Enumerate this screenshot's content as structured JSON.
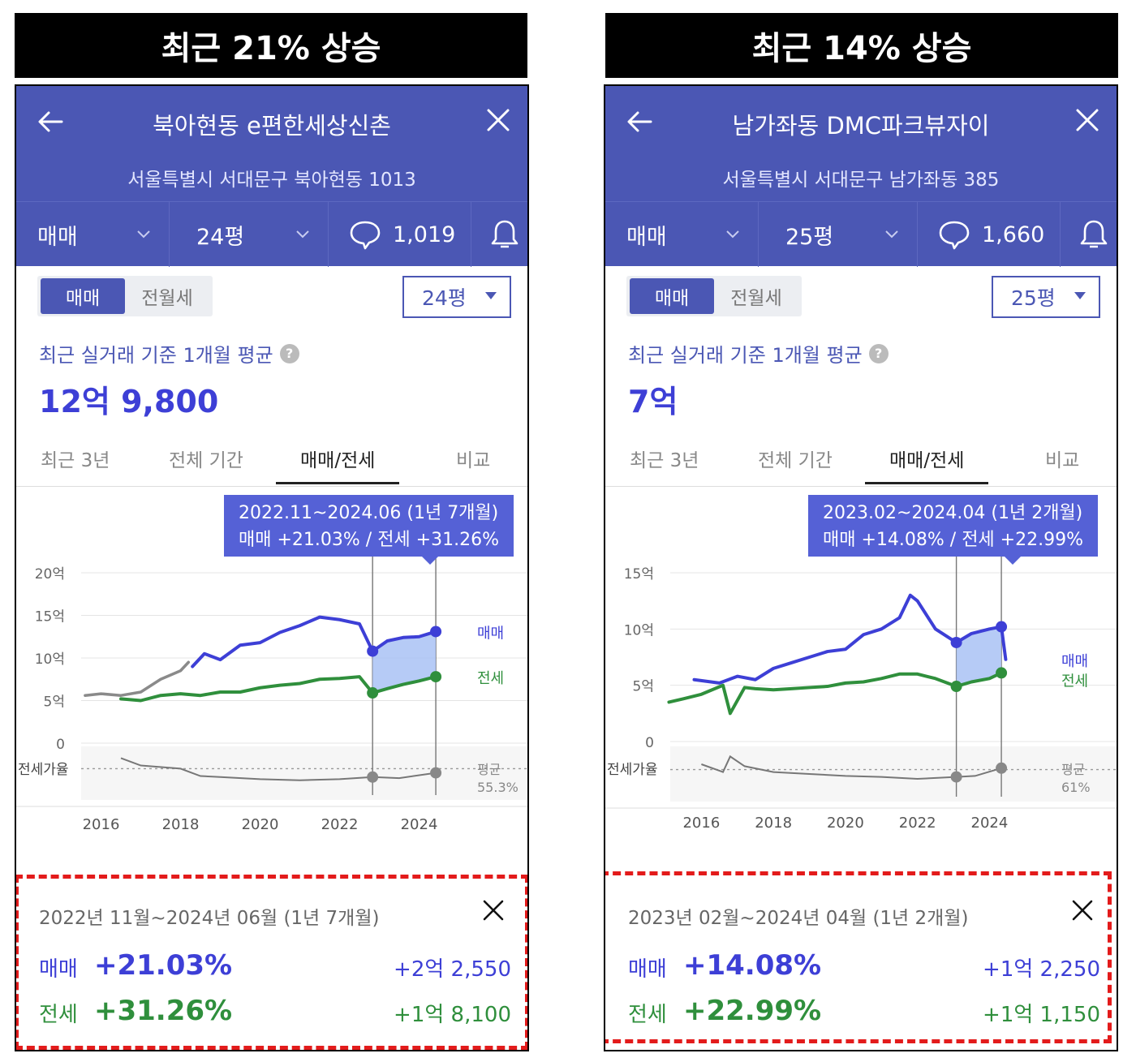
{
  "banners": {
    "left": "최근 21% 상승",
    "right": "최근 14% 상승"
  },
  "colors": {
    "header": "#4b57b4",
    "sale": "#3d3fd6",
    "jeonse": "#2f8f3c",
    "ratio": "#777777",
    "highlight": "#a9c2f5",
    "dash_border": "#e31b1b"
  },
  "left": {
    "title": "북아현동 e편한세상신촌",
    "address": "서울특별시 서대문구 북아현동 1013",
    "deal_type": "매매",
    "size": "24평",
    "comment_count": "1,019",
    "toggle": {
      "on": "매매",
      "off": "전월세"
    },
    "size_select": "24평",
    "avg_label": "최근 실거래 기준 1개월 평균",
    "avg_price": "12억 9,800",
    "tabs": [
      "최근 3년",
      "전체 기간",
      "매매/전세",
      "비교"
    ],
    "tooltip": {
      "line1": "2022.11~2024.06 (1년 7개월)",
      "line2": "매매 +21.03%  /  전세 +31.26%"
    },
    "summary": {
      "period": "2022년 11월~2024년 06월 (1년 7개월)",
      "sale_label": "매매",
      "sale_pct": "+21.03%",
      "sale_amt": "+2억 2,550",
      "jeonse_label": "전세",
      "jeonse_pct": "+31.26%",
      "jeonse_amt": "+1억 8,100"
    },
    "chart_data": {
      "type": "line",
      "y_ticks": [
        "20억",
        "15억",
        "10억",
        "5억",
        "0"
      ],
      "ylim": [
        0,
        20
      ],
      "x_ticks": [
        "2016",
        "2018",
        "2020",
        "2022",
        "2024"
      ],
      "xlim": [
        2015.5,
        2025.5
      ],
      "series_labels": {
        "sale": "매매",
        "jeonse": "전세"
      },
      "ratio_label": "전세가율",
      "ratio_avg_label": "평균",
      "ratio_avg_value": "55.3%",
      "highlight_range": [
        2022.83,
        2024.42
      ],
      "sale_early": [
        [
          2015.6,
          5.6
        ],
        [
          2016,
          5.8
        ],
        [
          2016.5,
          5.6
        ],
        [
          2017,
          6.0
        ],
        [
          2017.5,
          7.5
        ],
        [
          2018,
          8.5
        ],
        [
          2018.2,
          9.5
        ]
      ],
      "sale": [
        [
          2018.3,
          9.0
        ],
        [
          2018.6,
          10.5
        ],
        [
          2019,
          9.8
        ],
        [
          2019.5,
          11.5
        ],
        [
          2020,
          11.8
        ],
        [
          2020.5,
          13.0
        ],
        [
          2021,
          13.8
        ],
        [
          2021.5,
          14.8
        ],
        [
          2022,
          14.5
        ],
        [
          2022.5,
          14.0
        ],
        [
          2022.83,
          10.8
        ],
        [
          2023.2,
          12.0
        ],
        [
          2023.6,
          12.4
        ],
        [
          2024,
          12.5
        ],
        [
          2024.42,
          13.1
        ]
      ],
      "jeonse": [
        [
          2016.5,
          5.2
        ],
        [
          2017,
          5.0
        ],
        [
          2017.5,
          5.6
        ],
        [
          2018,
          5.8
        ],
        [
          2018.5,
          5.6
        ],
        [
          2019,
          6.0
        ],
        [
          2019.5,
          6.0
        ],
        [
          2020,
          6.5
        ],
        [
          2020.5,
          6.8
        ],
        [
          2021,
          7.0
        ],
        [
          2021.5,
          7.5
        ],
        [
          2022,
          7.6
        ],
        [
          2022.5,
          7.8
        ],
        [
          2022.83,
          5.9
        ],
        [
          2023.2,
          6.4
        ],
        [
          2023.6,
          6.9
        ],
        [
          2024,
          7.3
        ],
        [
          2024.42,
          7.8
        ]
      ],
      "ratio": [
        [
          2016.5,
          72
        ],
        [
          2017,
          65
        ],
        [
          2018,
          62
        ],
        [
          2018.5,
          55
        ],
        [
          2019,
          54
        ],
        [
          2020,
          52
        ],
        [
          2021,
          51
        ],
        [
          2022,
          52
        ],
        [
          2022.83,
          54
        ],
        [
          2023.5,
          53
        ],
        [
          2024.42,
          58
        ]
      ]
    }
  },
  "right": {
    "title": "남가좌동 DMC파크뷰자이",
    "address": "서울특별시 서대문구 남가좌동 385",
    "deal_type": "매매",
    "size": "25평",
    "comment_count": "1,660",
    "toggle": {
      "on": "매매",
      "off": "전월세"
    },
    "size_select": "25평",
    "avg_label": "최근 실거래 기준 1개월 평균",
    "avg_price": "7억",
    "tabs": [
      "최근 3년",
      "전체 기간",
      "매매/전세",
      "비교"
    ],
    "tooltip": {
      "line1": "2023.02~2024.04 (1년 2개월)",
      "line2": "매매 +14.08%  /  전세 +22.99%"
    },
    "summary": {
      "period": "2023년 02월~2024년 04월 (1년 2개월)",
      "sale_label": "매매",
      "sale_pct": "+14.08%",
      "sale_amt": "+1억 2,250",
      "jeonse_label": "전세",
      "jeonse_pct": "+22.99%",
      "jeonse_amt": "+1억 1,150"
    },
    "chart_data": {
      "type": "line",
      "y_ticks": [
        "15억",
        "10억",
        "5억",
        "0"
      ],
      "ylim": [
        0,
        15
      ],
      "x_ticks": [
        "2016",
        "2018",
        "2020",
        "2022",
        "2024"
      ],
      "xlim": [
        2015,
        2025.5
      ],
      "series_labels": {
        "sale": "매매",
        "jeonse": "전세"
      },
      "ratio_label": "전세가율",
      "ratio_avg_label": "평균",
      "ratio_avg_value": "61%",
      "highlight_range": [
        2023.08,
        2024.33
      ],
      "sale_early": [],
      "sale": [
        [
          2015.8,
          5.5
        ],
        [
          2016.5,
          5.2
        ],
        [
          2017,
          5.8
        ],
        [
          2017.5,
          5.5
        ],
        [
          2018,
          6.5
        ],
        [
          2018.5,
          7.0
        ],
        [
          2019,
          7.5
        ],
        [
          2019.5,
          8.0
        ],
        [
          2020,
          8.2
        ],
        [
          2020.5,
          9.5
        ],
        [
          2021,
          10.0
        ],
        [
          2021.5,
          11.0
        ],
        [
          2021.8,
          13.0
        ],
        [
          2022,
          12.5
        ],
        [
          2022.5,
          10.0
        ],
        [
          2023.08,
          8.8
        ],
        [
          2023.5,
          9.6
        ],
        [
          2024,
          10.0
        ],
        [
          2024.33,
          10.2
        ],
        [
          2024.45,
          7.3
        ]
      ],
      "jeonse": [
        [
          2015.1,
          3.5
        ],
        [
          2015.5,
          3.8
        ],
        [
          2016,
          4.2
        ],
        [
          2016.6,
          5.0
        ],
        [
          2016.8,
          2.5
        ],
        [
          2017.2,
          4.8
        ],
        [
          2017.5,
          4.7
        ],
        [
          2018,
          4.6
        ],
        [
          2018.5,
          4.7
        ],
        [
          2019,
          4.8
        ],
        [
          2019.5,
          4.9
        ],
        [
          2020,
          5.2
        ],
        [
          2020.5,
          5.3
        ],
        [
          2021,
          5.6
        ],
        [
          2021.5,
          6.0
        ],
        [
          2022,
          6.0
        ],
        [
          2022.5,
          5.6
        ],
        [
          2023.08,
          4.9
        ],
        [
          2023.5,
          5.3
        ],
        [
          2024,
          5.6
        ],
        [
          2024.33,
          6.1
        ]
      ],
      "ratio": [
        [
          2016,
          70
        ],
        [
          2016.6,
          62
        ],
        [
          2016.8,
          78
        ],
        [
          2017.2,
          68
        ],
        [
          2018,
          62
        ],
        [
          2019,
          60
        ],
        [
          2020,
          58
        ],
        [
          2021,
          57
        ],
        [
          2022,
          55
        ],
        [
          2023.08,
          57
        ],
        [
          2023.6,
          58
        ],
        [
          2024.33,
          66
        ]
      ]
    }
  }
}
